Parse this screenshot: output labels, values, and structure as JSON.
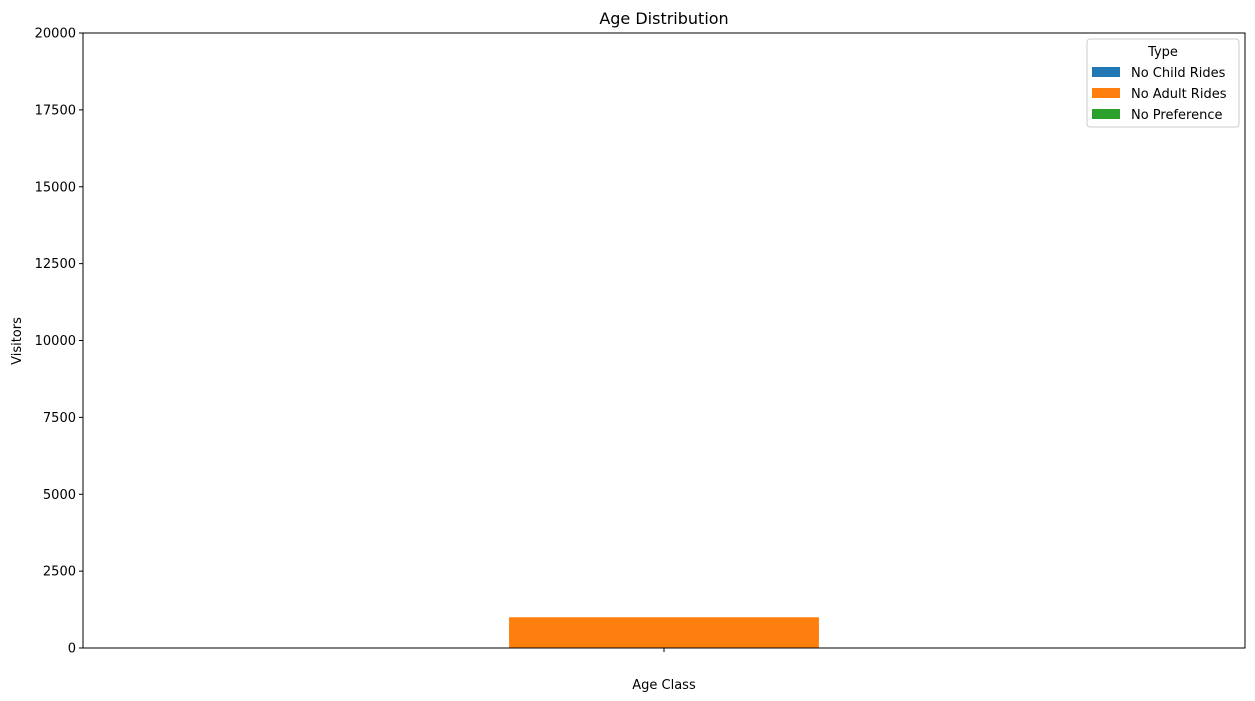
{
  "chart_data": {
    "type": "bar",
    "title": "Age Distribution",
    "xlabel": "Age Class",
    "ylabel": "Visitors",
    "categories": [
      ""
    ],
    "series": [
      {
        "name": "No Child Rides",
        "color": "#1f77b4",
        "values": [
          0
        ]
      },
      {
        "name": "No Adult Rides",
        "color": "#ff7f0e",
        "values": [
          1000
        ]
      },
      {
        "name": "No Preference",
        "color": "#2ca02c",
        "values": [
          0
        ]
      }
    ],
    "ylim": [
      0,
      20000
    ],
    "yticks": [
      0,
      2500,
      5000,
      7500,
      10000,
      12500,
      15000,
      17500,
      20000
    ],
    "grid": false,
    "legend": {
      "title": "Type",
      "position": "top-right"
    }
  }
}
